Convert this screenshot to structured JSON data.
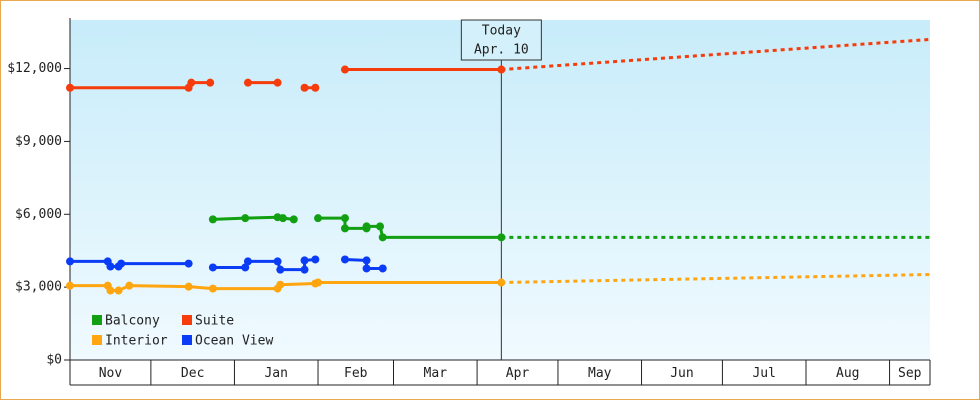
{
  "chart_data": {
    "type": "line",
    "xlim": [
      0,
      319
    ],
    "xticks": [
      {
        "value": 0,
        "label": "Nov"
      },
      {
        "value": 30,
        "label": "Dec"
      },
      {
        "value": 61,
        "label": "Jan"
      },
      {
        "value": 92,
        "label": "Feb"
      },
      {
        "value": 120,
        "label": "Mar"
      },
      {
        "value": 151,
        "label": "Apr"
      },
      {
        "value": 181,
        "label": "May"
      },
      {
        "value": 212,
        "label": "Jun"
      },
      {
        "value": 242,
        "label": "Jul"
      },
      {
        "value": 273,
        "label": "Aug"
      },
      {
        "value": 304,
        "label": "Sep"
      }
    ],
    "ylim": [
      0,
      14000
    ],
    "yticks": [
      {
        "value": 0,
        "label": "$0"
      },
      {
        "value": 3000,
        "label": "$3,000"
      },
      {
        "value": 6000,
        "label": "$6,000"
      },
      {
        "value": 9000,
        "label": "$9,000"
      },
      {
        "value": 12000,
        "label": "$12,000"
      }
    ],
    "grid": false,
    "legend": "lower left",
    "today": {
      "x": 160,
      "label": "Today",
      "date": "Apr. 10"
    },
    "series": [
      {
        "name": "Balcony",
        "color": "#12a012",
        "x": [
          53,
          65,
          77,
          79,
          83,
          null,
          92,
          102,
          102,
          110,
          110,
          115,
          116,
          160
        ],
        "values": [
          5790,
          5840,
          5880,
          5840,
          5790,
          null,
          5840,
          5840,
          5420,
          5420,
          5500,
          5500,
          5050,
          5050
        ],
        "projection": {
          "x": [
            160,
            319
          ],
          "values": [
            5050,
            5050
          ]
        }
      },
      {
        "name": "Suite",
        "color": "#f53c0a",
        "x": [
          0,
          44,
          45,
          52,
          null,
          66,
          77,
          null,
          87,
          91,
          null,
          102,
          160
        ],
        "values": [
          11210,
          11210,
          11420,
          11420,
          null,
          11420,
          11420,
          null,
          11210,
          11210,
          null,
          11960,
          11960
        ],
        "projection": {
          "x": [
            160,
            319
          ],
          "values": [
            11960,
            13200
          ]
        }
      },
      {
        "name": "Interior",
        "color": "#ffa510",
        "x": [
          0,
          14,
          15,
          18,
          22,
          44,
          53,
          77,
          78,
          91,
          92,
          160
        ],
        "values": [
          3060,
          3060,
          2860,
          2860,
          3060,
          3020,
          2940,
          2940,
          3100,
          3150,
          3190,
          3190
        ],
        "projection": {
          "x": [
            160,
            319
          ],
          "values": [
            3190,
            3520
          ]
        }
      },
      {
        "name": "Ocean View",
        "color": "#0a3cf5",
        "x": [
          0,
          14,
          15,
          18,
          19,
          44,
          null,
          53,
          65,
          66,
          77,
          78,
          87,
          87,
          91,
          null,
          102,
          110,
          110,
          116
        ],
        "values": [
          4060,
          4060,
          3850,
          3850,
          3970,
          3970,
          null,
          3810,
          3810,
          4060,
          4060,
          3720,
          3720,
          4100,
          4140,
          null,
          4140,
          4100,
          3770,
          3770
        ]
      }
    ]
  }
}
